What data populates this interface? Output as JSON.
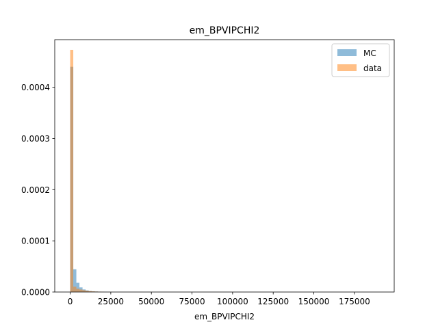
{
  "chart_data": {
    "type": "histogram",
    "title": "em_BPVIPCHI2",
    "xlabel": "em_BPVIPCHI2",
    "ylabel": "",
    "xlim": [
      -9500,
      199500
    ],
    "ylim": [
      0,
      0.000493
    ],
    "xticks": [
      0,
      25000,
      50000,
      75000,
      100000,
      125000,
      150000,
      175000
    ],
    "xtick_labels": [
      "0",
      "25000",
      "50000",
      "75000",
      "100000",
      "125000",
      "150000",
      "175000"
    ],
    "yticks": [
      0,
      0.0001,
      0.0002,
      0.0003,
      0.0004
    ],
    "ytick_labels": [
      "0.0000",
      "0.0001",
      "0.0002",
      "0.0003",
      "0.0004"
    ],
    "legend_position": "top-right",
    "grid": false,
    "series": [
      {
        "name": "MC",
        "color": "#1f77b4",
        "alpha": 0.5,
        "bins": [
          {
            "x0": 0,
            "x1": 1900,
            "value": 0.00044
          },
          {
            "x0": 1900,
            "x1": 3800,
            "value": 4.45e-05
          },
          {
            "x0": 3800,
            "x1": 5700,
            "value": 1.8e-05
          },
          {
            "x0": 5700,
            "x1": 7600,
            "value": 9e-06
          },
          {
            "x0": 7600,
            "x1": 9500,
            "value": 5e-06
          },
          {
            "x0": 9500,
            "x1": 11400,
            "value": 3.2e-06
          },
          {
            "x0": 11400,
            "x1": 13300,
            "value": 2e-06
          },
          {
            "x0": 13300,
            "x1": 15200,
            "value": 1.4e-06
          },
          {
            "x0": 15200,
            "x1": 17100,
            "value": 1e-06
          },
          {
            "x0": 17100,
            "x1": 19000,
            "value": 7e-07
          },
          {
            "x0": 19000,
            "x1": 20900,
            "value": 5e-07
          },
          {
            "x0": 20900,
            "x1": 22800,
            "value": 3e-07
          }
        ]
      },
      {
        "name": "data",
        "color": "#ff7f0e",
        "alpha": 0.5,
        "bins": [
          {
            "x0": 0,
            "x1": 1900,
            "value": 0.000473
          },
          {
            "x0": 1900,
            "x1": 3800,
            "value": 1.05e-05
          },
          {
            "x0": 3800,
            "x1": 5700,
            "value": 6.5e-06
          },
          {
            "x0": 5700,
            "x1": 7600,
            "value": 4.8e-06
          },
          {
            "x0": 7600,
            "x1": 9500,
            "value": 3.5e-06
          },
          {
            "x0": 9500,
            "x1": 11400,
            "value": 2.5e-06
          },
          {
            "x0": 11400,
            "x1": 13300,
            "value": 1.8e-06
          },
          {
            "x0": 13300,
            "x1": 15200,
            "value": 1.3e-06
          },
          {
            "x0": 15200,
            "x1": 17100,
            "value": 9e-07
          },
          {
            "x0": 17100,
            "x1": 19000,
            "value": 6e-07
          },
          {
            "x0": 19000,
            "x1": 20900,
            "value": 4e-07
          }
        ]
      }
    ]
  }
}
